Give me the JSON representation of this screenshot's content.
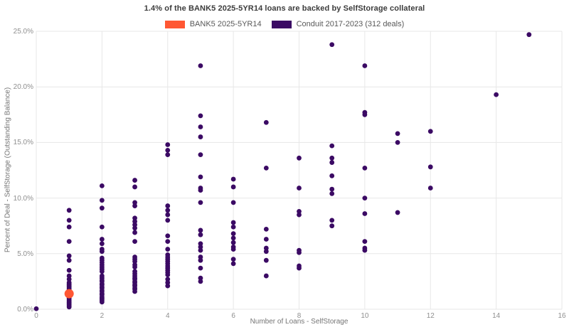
{
  "title": "1.4% of the BANK5 2025-5YR14 loans are backed by SelfStorage collateral",
  "legend": [
    {
      "label": "BANK5 2025-5YR14",
      "color": "#ff5733"
    },
    {
      "label": "Conduit 2017-2023 (312 deals)",
      "color": "#3b0a64"
    }
  ],
  "chart_data": {
    "type": "scatter",
    "title": "1.4% of the BANK5 2025-5YR14 loans are backed by SelfStorage collateral",
    "xlabel": "Number of Loans - SelfStorage",
    "ylabel": "Percent of Deal - SelfStorage (Outstanding Balance)",
    "xlim": [
      0,
      16
    ],
    "ylim": [
      0,
      25
    ],
    "grid": true,
    "grid_color": "#e7e7e7",
    "legend_position": "top-center",
    "x_tick_values": [
      0,
      2,
      4,
      6,
      8,
      10,
      12,
      14,
      16
    ],
    "x_tick_labels": [
      "0",
      "2",
      "4",
      "6",
      "8",
      "10",
      "12",
      "14",
      "16"
    ],
    "y_tick_values": [
      0,
      5,
      10,
      15,
      20,
      25
    ],
    "y_tick_labels": [
      "0.0%",
      "5.0%",
      "10.0%",
      "15.0%",
      "20.0%",
      "25.0%"
    ],
    "series": [
      {
        "name": "Conduit 2017-2023 (312 deals)",
        "color": "#3b0a64",
        "marker_radius": 3.4,
        "points": [
          [
            0,
            0.05
          ],
          [
            1,
            8.9
          ],
          [
            1,
            8.0
          ],
          [
            1,
            7.4
          ],
          [
            1,
            6.1
          ],
          [
            1,
            4.8
          ],
          [
            1,
            4.4
          ],
          [
            1,
            3.5
          ],
          [
            1,
            3.0
          ],
          [
            1,
            2.7
          ],
          [
            1,
            2.4
          ],
          [
            1,
            2.3
          ],
          [
            1,
            2.2
          ],
          [
            1,
            2.1
          ],
          [
            1,
            2.0
          ],
          [
            1,
            1.9
          ],
          [
            1,
            1.8
          ],
          [
            1,
            1.7
          ],
          [
            1,
            1.6
          ],
          [
            1,
            1.5
          ],
          [
            1,
            1.4
          ],
          [
            1,
            1.3
          ],
          [
            1,
            1.2
          ],
          [
            1,
            1.1
          ],
          [
            1,
            1.0
          ],
          [
            1,
            0.9
          ],
          [
            1,
            0.8
          ],
          [
            1,
            0.7
          ],
          [
            1,
            0.6
          ],
          [
            1,
            0.5
          ],
          [
            1,
            0.4
          ],
          [
            1,
            0.3
          ],
          [
            1,
            0.2
          ],
          [
            2,
            11.1
          ],
          [
            2,
            9.8
          ],
          [
            2,
            9.1
          ],
          [
            2,
            7.4
          ],
          [
            2,
            6.3
          ],
          [
            2,
            5.9
          ],
          [
            2,
            5.4
          ],
          [
            2,
            5.2
          ],
          [
            2,
            4.6
          ],
          [
            2,
            4.4
          ],
          [
            2,
            4.2
          ],
          [
            2,
            4.0
          ],
          [
            2,
            3.8
          ],
          [
            2,
            3.6
          ],
          [
            2,
            3.4
          ],
          [
            2,
            3.0
          ],
          [
            2,
            2.8
          ],
          [
            2,
            2.6
          ],
          [
            2,
            2.5
          ],
          [
            2,
            2.3
          ],
          [
            2,
            2.2
          ],
          [
            2,
            2.0
          ],
          [
            2,
            1.9
          ],
          [
            2,
            1.7
          ],
          [
            2,
            1.6
          ],
          [
            2,
            1.4
          ],
          [
            2,
            1.3
          ],
          [
            2,
            1.1
          ],
          [
            2,
            1.0
          ],
          [
            2,
            0.9
          ],
          [
            2,
            0.8
          ],
          [
            2,
            0.65
          ],
          [
            3,
            11.6
          ],
          [
            3,
            11.0
          ],
          [
            3,
            9.6
          ],
          [
            3,
            9.3
          ],
          [
            3,
            8.2
          ],
          [
            3,
            7.9
          ],
          [
            3,
            7.6
          ],
          [
            3,
            7.3
          ],
          [
            3,
            6.9
          ],
          [
            3,
            6.1
          ],
          [
            3,
            4.7
          ],
          [
            3,
            4.5
          ],
          [
            3,
            4.3
          ],
          [
            3,
            4.0
          ],
          [
            3,
            3.8
          ],
          [
            3,
            3.4
          ],
          [
            3,
            3.2
          ],
          [
            3,
            3.0
          ],
          [
            3,
            2.8
          ],
          [
            3,
            2.7
          ],
          [
            3,
            2.5
          ],
          [
            3,
            2.4
          ],
          [
            3,
            2.2
          ],
          [
            3,
            2.1
          ],
          [
            3,
            1.9
          ],
          [
            3,
            1.8
          ],
          [
            3,
            1.6
          ],
          [
            4,
            14.8
          ],
          [
            4,
            14.3
          ],
          [
            4,
            13.9
          ],
          [
            4,
            9.3
          ],
          [
            4,
            8.9
          ],
          [
            4,
            8.5
          ],
          [
            4,
            8.0
          ],
          [
            4,
            6.6
          ],
          [
            4,
            6.1
          ],
          [
            4,
            5.4
          ],
          [
            4,
            4.9
          ],
          [
            4,
            4.7
          ],
          [
            4,
            4.5
          ],
          [
            4,
            4.3
          ],
          [
            4,
            4.1
          ],
          [
            4,
            3.9
          ],
          [
            4,
            3.7
          ],
          [
            4,
            3.5
          ],
          [
            4,
            3.3
          ],
          [
            4,
            3.1
          ],
          [
            4,
            2.7
          ],
          [
            4,
            2.4
          ],
          [
            4,
            2.1
          ],
          [
            5,
            21.9
          ],
          [
            5,
            17.4
          ],
          [
            5,
            16.4
          ],
          [
            5,
            15.5
          ],
          [
            5,
            13.9
          ],
          [
            5,
            11.9
          ],
          [
            5,
            10.9
          ],
          [
            5,
            10.7
          ],
          [
            5,
            9.6
          ],
          [
            5,
            7.1
          ],
          [
            5,
            6.7
          ],
          [
            5,
            5.9
          ],
          [
            5,
            5.6
          ],
          [
            5,
            5.3
          ],
          [
            5,
            4.7
          ],
          [
            5,
            4.4
          ],
          [
            5,
            3.7
          ],
          [
            5,
            2.8
          ],
          [
            5,
            2.5
          ],
          [
            6,
            11.7
          ],
          [
            6,
            11.0
          ],
          [
            6,
            9.6
          ],
          [
            6,
            7.8
          ],
          [
            6,
            7.4
          ],
          [
            6,
            6.8
          ],
          [
            6,
            6.4
          ],
          [
            6,
            6.0
          ],
          [
            6,
            5.6
          ],
          [
            6,
            5.4
          ],
          [
            6,
            4.5
          ],
          [
            6,
            4.1
          ],
          [
            7,
            16.8
          ],
          [
            7,
            12.7
          ],
          [
            7,
            7.2
          ],
          [
            7,
            6.3
          ],
          [
            7,
            5.5
          ],
          [
            7,
            5.2
          ],
          [
            7,
            4.4
          ],
          [
            7,
            3.0
          ],
          [
            8,
            13.6
          ],
          [
            8,
            10.9
          ],
          [
            8,
            8.8
          ],
          [
            8,
            8.5
          ],
          [
            8,
            5.3
          ],
          [
            8,
            5.1
          ],
          [
            8,
            3.9
          ],
          [
            8,
            3.7
          ],
          [
            9,
            23.8
          ],
          [
            9,
            14.7
          ],
          [
            9,
            13.6
          ],
          [
            9,
            13.2
          ],
          [
            9,
            12.0
          ],
          [
            9,
            10.8
          ],
          [
            9,
            10.4
          ],
          [
            9,
            8.0
          ],
          [
            9,
            7.5
          ],
          [
            10,
            21.9
          ],
          [
            10,
            17.7
          ],
          [
            10,
            17.5
          ],
          [
            10,
            12.7
          ],
          [
            10,
            10.0
          ],
          [
            10,
            8.6
          ],
          [
            10,
            6.1
          ],
          [
            10,
            5.5
          ],
          [
            10,
            5.3
          ],
          [
            11,
            15.8
          ],
          [
            11,
            15.0
          ],
          [
            11,
            8.7
          ],
          [
            12,
            16.0
          ],
          [
            12,
            12.8
          ],
          [
            12,
            10.9
          ],
          [
            14,
            19.3
          ],
          [
            15,
            24.7
          ]
        ]
      },
      {
        "name": "BANK5 2025-5YR14",
        "color": "#ff5733",
        "marker_radius": 6.5,
        "points": [
          [
            1,
            1.4
          ]
        ]
      }
    ]
  }
}
